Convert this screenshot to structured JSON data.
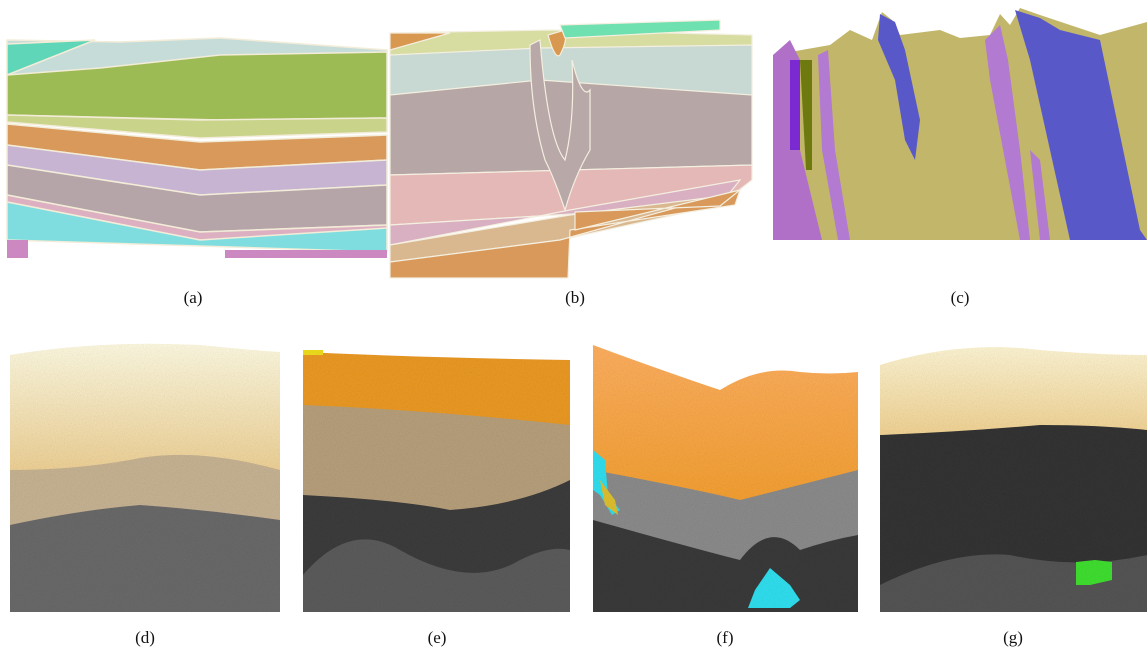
{
  "panels": [
    {
      "caption": "(a)"
    },
    {
      "caption": "(b)"
    },
    {
      "caption": "(c)"
    },
    {
      "caption": "(d)"
    },
    {
      "caption": "(e)"
    },
    {
      "caption": "(f)"
    },
    {
      "caption": "(g)"
    }
  ]
}
